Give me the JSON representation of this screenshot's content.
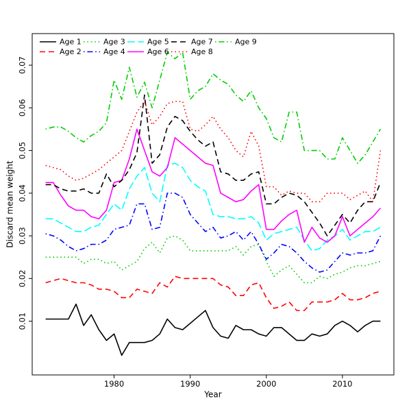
{
  "chart_data": {
    "type": "line",
    "title": "",
    "xlabel": "Year",
    "ylabel": "Discard mean weight",
    "grid": false,
    "legend_position": "top-left-inside",
    "legend_columns": 5,
    "axis_color": "#000000",
    "x_ticks": [
      1980,
      1990,
      2000,
      2010
    ],
    "y_ticks": [
      0.01,
      0.02,
      0.03,
      0.04,
      0.05,
      0.06,
      0.07
    ],
    "xlim": [
      1969.24,
      2016.76
    ],
    "ylim": [
      -0.0026,
      0.0774
    ],
    "x": [
      1971,
      1972,
      1973,
      1974,
      1975,
      1976,
      1977,
      1978,
      1979,
      1980,
      1981,
      1982,
      1983,
      1984,
      1985,
      1986,
      1987,
      1988,
      1989,
      1990,
      1991,
      1992,
      1993,
      1994,
      1995,
      1996,
      1997,
      1998,
      1999,
      2000,
      2001,
      2002,
      2003,
      2004,
      2005,
      2006,
      2007,
      2008,
      2009,
      2010,
      2011,
      2012,
      2013,
      2014,
      2015
    ],
    "series": [
      {
        "name": "Age 1",
        "color": "#000000",
        "linetype": "solid",
        "values": [
          0.0105,
          0.0105,
          0.0105,
          0.0105,
          0.014,
          0.009,
          0.0115,
          0.008,
          0.0055,
          0.007,
          0.002,
          0.005,
          0.005,
          0.005,
          0.0055,
          0.007,
          0.0105,
          0.0085,
          0.008,
          0.0095,
          0.011,
          0.0125,
          0.0085,
          0.0065,
          0.006,
          0.009,
          0.008,
          0.008,
          0.007,
          0.0065,
          0.0085,
          0.0085,
          0.007,
          0.0055,
          0.0055,
          0.007,
          0.0065,
          0.007,
          0.009,
          0.01,
          0.009,
          0.0075,
          0.009,
          0.01,
          0.01
        ]
      },
      {
        "name": "Age 2",
        "color": "#FF0000",
        "linetype": "dashed",
        "values": [
          0.019,
          0.0195,
          0.02,
          0.0195,
          0.019,
          0.019,
          0.0185,
          0.0175,
          0.0175,
          0.017,
          0.0155,
          0.0155,
          0.0175,
          0.017,
          0.0165,
          0.019,
          0.018,
          0.0205,
          0.02,
          0.02,
          0.02,
          0.02,
          0.02,
          0.0185,
          0.018,
          0.016,
          0.016,
          0.0185,
          0.019,
          0.0155,
          0.013,
          0.0135,
          0.0145,
          0.0125,
          0.0125,
          0.0145,
          0.0145,
          0.0145,
          0.015,
          0.0165,
          0.015,
          0.015,
          0.0155,
          0.0165,
          0.017
        ]
      },
      {
        "name": "Age 3",
        "color": "#00CD00",
        "linetype": "dotted",
        "values": [
          0.025,
          0.025,
          0.025,
          0.025,
          0.025,
          0.0235,
          0.0245,
          0.0245,
          0.0235,
          0.024,
          0.022,
          0.023,
          0.024,
          0.027,
          0.0285,
          0.026,
          0.0295,
          0.03,
          0.029,
          0.0265,
          0.0265,
          0.0265,
          0.0265,
          0.0265,
          0.0265,
          0.0275,
          0.0255,
          0.0275,
          0.028,
          0.024,
          0.0205,
          0.022,
          0.023,
          0.021,
          0.019,
          0.019,
          0.0205,
          0.02,
          0.021,
          0.0215,
          0.0225,
          0.023,
          0.023,
          0.0235,
          0.024
        ]
      },
      {
        "name": "Age 4",
        "color": "#0000FF",
        "linetype": "dotdash",
        "values": [
          0.0305,
          0.03,
          0.029,
          0.0275,
          0.0265,
          0.027,
          0.028,
          0.028,
          0.029,
          0.0315,
          0.032,
          0.0325,
          0.0375,
          0.0375,
          0.0315,
          0.032,
          0.04,
          0.04,
          0.039,
          0.035,
          0.033,
          0.031,
          0.032,
          0.0295,
          0.03,
          0.031,
          0.029,
          0.031,
          0.028,
          0.0245,
          0.026,
          0.028,
          0.0275,
          0.026,
          0.024,
          0.0225,
          0.0215,
          0.022,
          0.024,
          0.026,
          0.0255,
          0.026,
          0.026,
          0.0265,
          0.03
        ]
      },
      {
        "name": "Age 5",
        "color": "#00FFFF",
        "linetype": "longdash",
        "values": [
          0.034,
          0.034,
          0.033,
          0.032,
          0.031,
          0.031,
          0.032,
          0.0325,
          0.035,
          0.0375,
          0.036,
          0.041,
          0.044,
          0.046,
          0.04,
          0.038,
          0.0465,
          0.047,
          0.046,
          0.043,
          0.0415,
          0.0405,
          0.035,
          0.0345,
          0.0345,
          0.034,
          0.034,
          0.0345,
          0.033,
          0.029,
          0.0305,
          0.031,
          0.0315,
          0.032,
          0.029,
          0.0265,
          0.027,
          0.029,
          0.03,
          0.0315,
          0.029,
          0.03,
          0.031,
          0.031,
          0.032
        ]
      },
      {
        "name": "Age 6",
        "color": "#FF00FF",
        "linetype": "solid",
        "values": [
          0.0425,
          0.0425,
          0.0395,
          0.037,
          0.036,
          0.036,
          0.0345,
          0.034,
          0.036,
          0.0425,
          0.043,
          0.048,
          0.055,
          0.05,
          0.045,
          0.044,
          0.046,
          0.053,
          0.0515,
          0.05,
          0.0485,
          0.047,
          0.0465,
          0.04,
          0.039,
          0.038,
          0.0385,
          0.0405,
          0.042,
          0.0315,
          0.0315,
          0.0335,
          0.035,
          0.036,
          0.0285,
          0.032,
          0.0295,
          0.0285,
          0.03,
          0.0345,
          0.03,
          0.0315,
          0.033,
          0.0345,
          0.0365
        ]
      },
      {
        "name": "Age 7",
        "color": "#000000",
        "linetype": "dashed",
        "values": [
          0.042,
          0.042,
          0.041,
          0.0405,
          0.0405,
          0.041,
          0.04,
          0.04,
          0.0445,
          0.0415,
          0.043,
          0.0455,
          0.0495,
          0.063,
          0.047,
          0.049,
          0.0555,
          0.058,
          0.057,
          0.0545,
          0.0525,
          0.051,
          0.052,
          0.045,
          0.0445,
          0.043,
          0.043,
          0.0445,
          0.045,
          0.0375,
          0.0375,
          0.039,
          0.04,
          0.0395,
          0.038,
          0.0355,
          0.033,
          0.03,
          0.0325,
          0.035,
          0.033,
          0.036,
          0.038,
          0.038,
          0.0425
        ]
      },
      {
        "name": "Age 8",
        "color": "#FF0000",
        "linetype": "dotted",
        "values": [
          0.0465,
          0.046,
          0.0455,
          0.044,
          0.043,
          0.0435,
          0.0445,
          0.0455,
          0.047,
          0.0485,
          0.05,
          0.0545,
          0.059,
          0.0615,
          0.056,
          0.058,
          0.061,
          0.0615,
          0.0615,
          0.055,
          0.0545,
          0.056,
          0.058,
          0.055,
          0.053,
          0.05,
          0.0485,
          0.0545,
          0.051,
          0.0415,
          0.0415,
          0.0395,
          0.0405,
          0.04,
          0.04,
          0.038,
          0.038,
          0.04,
          0.04,
          0.04,
          0.0385,
          0.0395,
          0.0405,
          0.038,
          0.05
        ]
      },
      {
        "name": "Age 9",
        "color": "#00CD00",
        "linetype": "dotdash",
        "values": [
          0.055,
          0.0555,
          0.0555,
          0.0545,
          0.053,
          0.052,
          0.0535,
          0.0545,
          0.0565,
          0.0665,
          0.062,
          0.0695,
          0.0625,
          0.066,
          0.06,
          0.0665,
          0.073,
          0.0715,
          0.073,
          0.062,
          0.064,
          0.065,
          0.068,
          0.0665,
          0.0655,
          0.063,
          0.0615,
          0.064,
          0.06,
          0.0575,
          0.053,
          0.052,
          0.059,
          0.059,
          0.05,
          0.05,
          0.05,
          0.048,
          0.048,
          0.053,
          0.05,
          0.047,
          0.049,
          0.052,
          0.055
        ]
      }
    ]
  }
}
